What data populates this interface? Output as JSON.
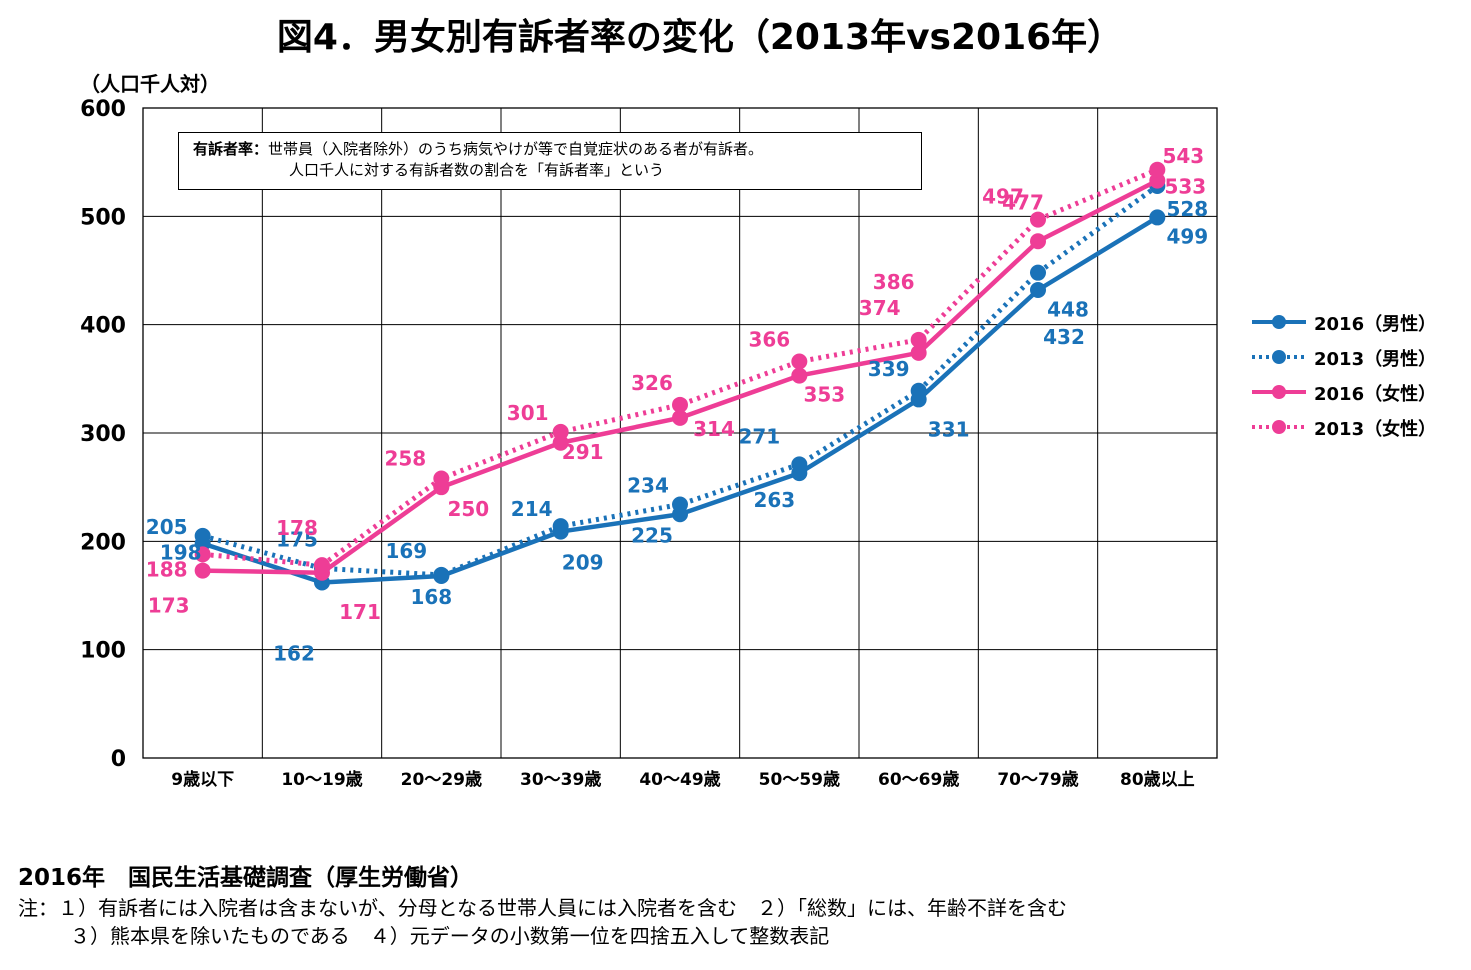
{
  "title": "図4．男女別有訴者率の変化（2013年vs2016年）",
  "unit_label": "（人口千人対）",
  "definition": {
    "label": "有訴者率：",
    "line1": "世帯員（入院者除外）のうち病気やけが等で自覚症状のある者が有訴者。",
    "line2": "人口千人に対する有訴者数の割合を「有訴者率」という"
  },
  "colors": {
    "male": "#1a72b8",
    "female": "#ee3d96",
    "grid": "#000000"
  },
  "chart_data": {
    "type": "line",
    "title": "図4．男女別有訴者率の変化（2013年vs2016年）",
    "ylabel": "（人口千人対）",
    "ylim": [
      0,
      600
    ],
    "yticks": [
      0,
      100,
      200,
      300,
      400,
      500,
      600
    ],
    "grid": true,
    "legend_position": "right",
    "categories": [
      "9歳以下",
      "10～19歳",
      "20～29歳",
      "30～39歳",
      "40～49歳",
      "50～59歳",
      "60～69歳",
      "70～79歳",
      "80歳以上"
    ],
    "series": [
      {
        "name": "2016（男性）",
        "color": "#1a72b8",
        "style": "solid",
        "values": [
          198,
          162,
          168,
          209,
          225,
          263,
          331,
          432,
          499
        ]
      },
      {
        "name": "2013（男性）",
        "color": "#1a72b8",
        "style": "dotted",
        "values": [
          205,
          175,
          169,
          214,
          234,
          271,
          339,
          448,
          528
        ]
      },
      {
        "name": "2016（女性）",
        "color": "#ee3d96",
        "style": "solid",
        "values": [
          173,
          171,
          250,
          291,
          314,
          353,
          374,
          477,
          533
        ]
      },
      {
        "name": "2013（女性）",
        "color": "#ee3d96",
        "style": "dotted",
        "values": [
          188,
          178,
          258,
          301,
          326,
          366,
          386,
          497,
          543
        ]
      }
    ]
  },
  "source": "2016年　国民生活基礎調査（厚生労働省）",
  "notes": [
    "注：１）有訴者には入院者は含まないが、分母となる世帯人員には入院者を含む　２）「総数」には、年齢不詳を含む",
    "３）熊本県を除いたものである　４）元データの小数第一位を四捨五入して整数表記"
  ]
}
